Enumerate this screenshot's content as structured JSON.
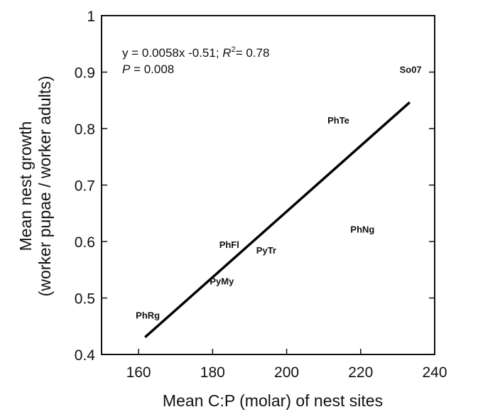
{
  "chart_data": {
    "type": "scatter",
    "xlabel": "Mean C:P (molar) of nest sites",
    "ylabel_line1": "Mean nest growth",
    "ylabel_line2": "(worker pupae / worker adults)",
    "xlim": [
      150,
      240
    ],
    "ylim": [
      0.4,
      1.0
    ],
    "x_ticks": [
      160,
      180,
      200,
      220,
      240
    ],
    "y_ticks": [
      {
        "value": 0.4,
        "label": "0.4"
      },
      {
        "value": 0.5,
        "label": "0.5"
      },
      {
        "value": 0.6,
        "label": "0.6"
      },
      {
        "value": 0.7,
        "label": "0.7"
      },
      {
        "value": 0.8,
        "label": "0.8"
      },
      {
        "value": 0.9,
        "label": "0.9"
      },
      {
        "value": 1.0,
        "label": "1"
      }
    ],
    "points": [
      {
        "label": "PhRg",
        "x": 162.5,
        "y": 0.47
      },
      {
        "label": "PyMy",
        "x": 182.5,
        "y": 0.53
      },
      {
        "label": "PhFl",
        "x": 184.5,
        "y": 0.595
      },
      {
        "label": "PyTr",
        "x": 194.5,
        "y": 0.585
      },
      {
        "label": "PhNg",
        "x": 220.5,
        "y": 0.622
      },
      {
        "label": "PhTe",
        "x": 214,
        "y": 0.815
      },
      {
        "label": "So07",
        "x": 233.5,
        "y": 0.905
      }
    ],
    "fit_line": {
      "x": [
        162,
        233
      ],
      "y": [
        0.432,
        0.845
      ]
    },
    "annotation": {
      "eq_prefix": "y = 0.0058x -0.51; ",
      "r_symbol": "R",
      "r_sup": "2",
      "r_value": "= 0.78",
      "p_symbol": "P",
      "p_value": " = 0.008"
    },
    "grid": false,
    "legend": "none"
  }
}
